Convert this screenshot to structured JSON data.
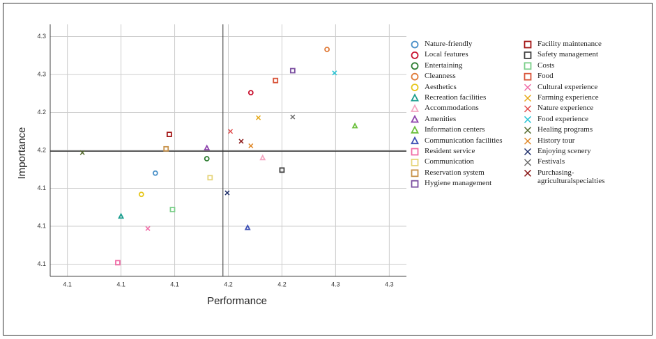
{
  "chart_data": {
    "type": "scatter",
    "x_label": "Performance",
    "y_label": "Importance",
    "xlim": [
      4.034,
      4.366
    ],
    "ylim": [
      4.034,
      4.366
    ],
    "xticks": [
      {
        "value": 4.05,
        "label": "4.1"
      },
      {
        "value": 4.1,
        "label": "4.1"
      },
      {
        "value": 4.15,
        "label": "4.1"
      },
      {
        "value": 4.2,
        "label": "4.2"
      },
      {
        "value": 4.25,
        "label": "4.2"
      },
      {
        "value": 4.3,
        "label": "4.3"
      },
      {
        "value": 4.35,
        "label": "4.3"
      }
    ],
    "yticks": [
      {
        "value": 4.05,
        "label": "4.1"
      },
      {
        "value": 4.1,
        "label": "4.1"
      },
      {
        "value": 4.15,
        "label": "4.1"
      },
      {
        "value": 4.2,
        "label": "4.2"
      },
      {
        "value": 4.25,
        "label": "4.2"
      },
      {
        "value": 4.3,
        "label": "4.3"
      },
      {
        "value": 4.35,
        "label": "4.3"
      }
    ],
    "grid": true,
    "x_ref": 4.195,
    "y_ref": 4.199,
    "series": [
      {
        "name": "Nature-friendly",
        "color": "#4a90c8",
        "marker": "circle",
        "x": [
          4.132
        ],
        "y": [
          4.17
        ]
      },
      {
        "name": "Local features",
        "color": "#c8102e",
        "marker": "circle",
        "x": [
          4.221
        ],
        "y": [
          4.276
        ]
      },
      {
        "name": "Entertaining",
        "color": "#2e7d32",
        "marker": "circle",
        "x": [
          4.18
        ],
        "y": [
          4.189
        ]
      },
      {
        "name": "Cleanness",
        "color": "#e07b39",
        "marker": "circle",
        "x": [
          4.292
        ],
        "y": [
          4.333
        ]
      },
      {
        "name": "Aesthetics",
        "color": "#e6c619",
        "marker": "circle",
        "x": [
          4.119
        ],
        "y": [
          4.142
        ]
      },
      {
        "name": "Recreation facilities",
        "color": "#1a9e8f",
        "marker": "triangle",
        "x": [
          4.1
        ],
        "y": [
          4.113
        ]
      },
      {
        "name": "Accommodations",
        "color": "#f4a6c1",
        "marker": "triangle",
        "x": [
          4.232
        ],
        "y": [
          4.19
        ]
      },
      {
        "name": "Amenities",
        "color": "#8e44ad",
        "marker": "triangle",
        "x": [
          4.18
        ],
        "y": [
          4.203
        ]
      },
      {
        "name": "Information centers",
        "color": "#6abf3b",
        "marker": "triangle",
        "x": [
          4.318
        ],
        "y": [
          4.232
        ]
      },
      {
        "name": "Communication facilities",
        "color": "#3f51b5",
        "marker": "triangle",
        "x": [
          4.218
        ],
        "y": [
          4.098
        ]
      },
      {
        "name": "Resident service",
        "color": "#f06ba6",
        "marker": "square",
        "x": [
          4.097
        ],
        "y": [
          4.052
        ]
      },
      {
        "name": "Communication",
        "color": "#e6d47a",
        "marker": "square",
        "x": [
          4.183
        ],
        "y": [
          4.164
        ]
      },
      {
        "name": "Reservation system",
        "color": "#c8924a",
        "marker": "square",
        "x": [
          4.142
        ],
        "y": [
          4.202
        ]
      },
      {
        "name": "Hygiene management",
        "color": "#7b4fa0",
        "marker": "square",
        "x": [
          4.26
        ],
        "y": [
          4.305
        ]
      },
      {
        "name": "Facility maintenance",
        "color": "#a31515",
        "marker": "square",
        "x": [
          4.145
        ],
        "y": [
          4.221
        ]
      },
      {
        "name": "Safety management",
        "color": "#404040",
        "marker": "square",
        "x": [
          4.25
        ],
        "y": [
          4.174
        ]
      },
      {
        "name": "Costs",
        "color": "#7ccf8a",
        "marker": "square",
        "x": [
          4.148
        ],
        "y": [
          4.122
        ]
      },
      {
        "name": "Food",
        "color": "#d9553a",
        "marker": "square",
        "x": [
          4.244
        ],
        "y": [
          4.292
        ]
      },
      {
        "name": "Cultural experience",
        "color": "#f06ba6",
        "marker": "cross",
        "x": [
          4.125
        ],
        "y": [
          4.097
        ]
      },
      {
        "name": "Farming experience",
        "color": "#e6a817",
        "marker": "cross",
        "x": [
          4.228
        ],
        "y": [
          4.243
        ]
      },
      {
        "name": "Nature experience",
        "color": "#e04a4a",
        "marker": "cross",
        "x": [
          4.202
        ],
        "y": [
          4.225
        ]
      },
      {
        "name": "Food experience",
        "color": "#29c4d4",
        "marker": "cross",
        "x": [
          4.299
        ],
        "y": [
          4.302
        ]
      },
      {
        "name": "Healing programs",
        "color": "#556b2f",
        "marker": "cross",
        "x": [
          4.064
        ],
        "y": [
          4.197
        ]
      },
      {
        "name": "History tour",
        "color": "#e0892a",
        "marker": "cross",
        "x": [
          4.221
        ],
        "y": [
          4.206
        ]
      },
      {
        "name": "Enjoying scenery",
        "color": "#1f2f6b",
        "marker": "cross",
        "x": [
          4.199
        ],
        "y": [
          4.144
        ]
      },
      {
        "name": "Festivals",
        "color": "#666666",
        "marker": "cross",
        "x": [
          4.26
        ],
        "y": [
          4.244
        ]
      },
      {
        "name": "Purchasing-agriculturalspecialties",
        "color": "#8b1a1a",
        "marker": "cross",
        "x": [
          4.212
        ],
        "y": [
          4.212
        ]
      }
    ]
  }
}
